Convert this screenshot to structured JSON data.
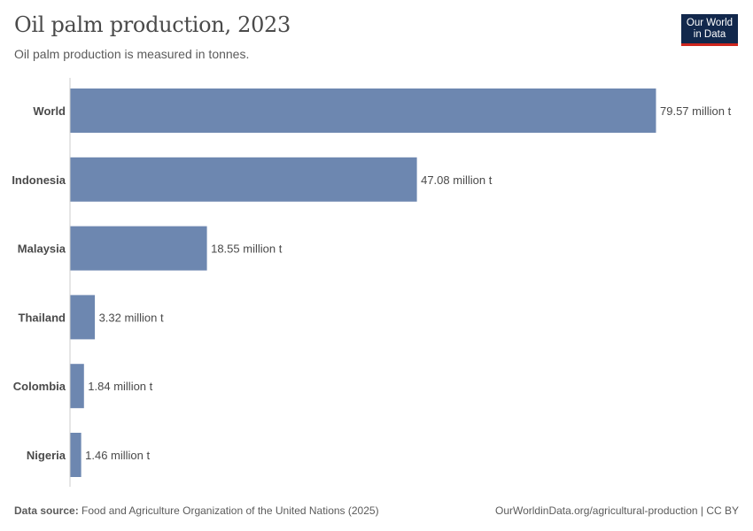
{
  "header": {
    "title": "Oil palm production, 2023",
    "subtitle": "Oil palm production is measured in tonnes.",
    "logo": "Our World in Data"
  },
  "chart_data": {
    "type": "bar",
    "orientation": "horizontal",
    "categories": [
      "World",
      "Indonesia",
      "Malaysia",
      "Thailand",
      "Colombia",
      "Nigeria"
    ],
    "values": [
      79.57,
      47.08,
      18.55,
      3.32,
      1.84,
      1.46
    ],
    "value_labels": [
      "79.57 million t",
      "47.08 million t",
      "18.55 million t",
      "3.32 million t",
      "1.84 million t",
      "1.46 million t"
    ],
    "unit": "million t",
    "bar_color": "#6d87b0",
    "xlim": [
      0,
      79.57
    ]
  },
  "footer": {
    "source_label": "Data source:",
    "source": "Food and Agriculture Organization of the United Nations (2025)",
    "url": "OurWorldinData.org/agricultural-production | CC BY"
  }
}
